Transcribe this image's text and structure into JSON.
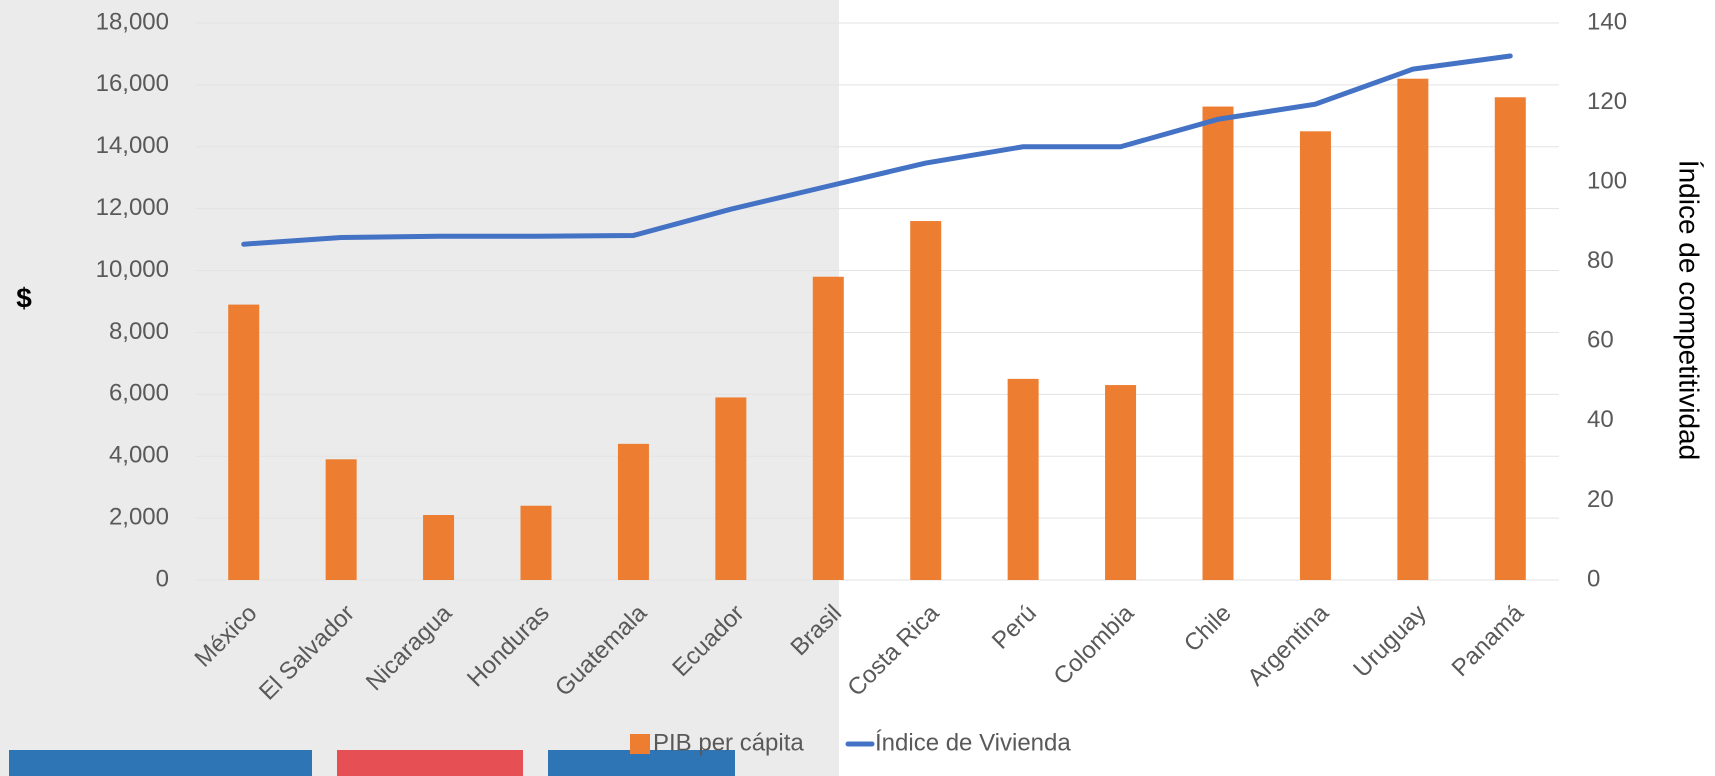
{
  "chart_data": {
    "type": "bar_line",
    "categories": [
      "México",
      "El Salvador",
      "Nicaragua",
      "Honduras",
      "Guatemala",
      "Ecuador",
      "Brasil",
      "Costa Rica",
      "Perú",
      "Colombia",
      "Chile",
      "Argentina",
      "Uruguay",
      "Panamá"
    ],
    "series": [
      {
        "name": "PIB per cápita",
        "type": "bar",
        "color": "#ed7d31",
        "values": [
          8900,
          3900,
          2100,
          2400,
          4400,
          5900,
          9800,
          11600,
          6500,
          6300,
          15300,
          14500,
          16200,
          15600
        ]
      },
      {
        "name": "Índice de Vivienda",
        "type": "line",
        "axis": "y2",
        "color": "#4472c4",
        "values": [
          84.4,
          86.1,
          86.4,
          86.4,
          86.6,
          93.2,
          99,
          104.8,
          108.9,
          108.9,
          115.8,
          119.6,
          128.4,
          131.7
        ]
      }
    ],
    "y_label": "$",
    "y2_label": "Índice de competitividad",
    "ylim": [
      0,
      18000
    ],
    "yticks": [
      0,
      {
        "value": 2000,
        "label": "2,000"
      },
      {
        "value": 4000,
        "label": "4,000"
      },
      {
        "value": 6000,
        "label": "6,000"
      },
      {
        "value": 8000,
        "label": "8,000"
      },
      {
        "value": 10000,
        "label": "10,000"
      },
      {
        "value": 12000,
        "label": "12,000"
      },
      {
        "value": 14000,
        "label": "14,000"
      },
      {
        "value": 16000,
        "label": "16,000"
      },
      {
        "value": 18000,
        "label": "18,000"
      }
    ],
    "y2lim": [
      0,
      140
    ],
    "y2ticks": [
      0,
      20,
      40,
      60,
      80,
      100,
      120,
      140
    ],
    "grid": true,
    "legend": "bottom"
  }
}
